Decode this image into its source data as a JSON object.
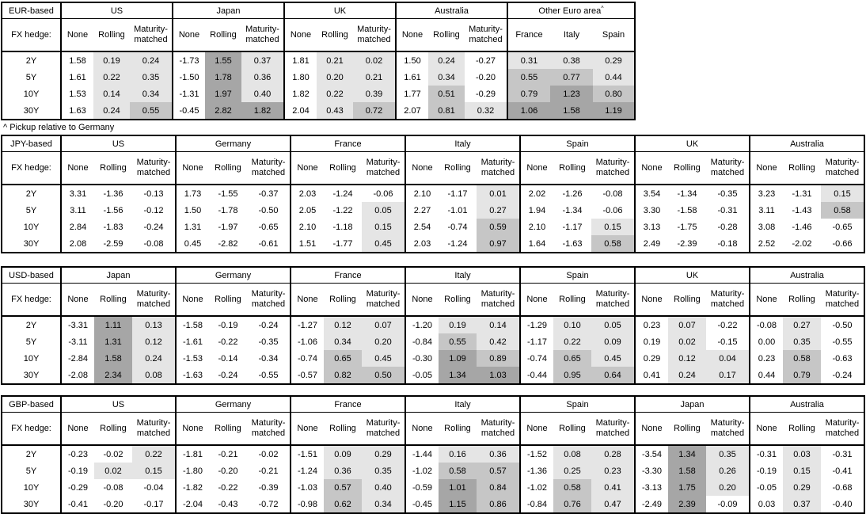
{
  "footnote": "^ Pickup relative to Germany",
  "labels": {
    "fx_hedge": "FX hedge:",
    "tenors": [
      "2Y",
      "5Y",
      "10Y",
      "30Y"
    ],
    "hedge_cols": [
      "None",
      "Rolling",
      "Maturity-matched"
    ]
  },
  "heat_colors": {
    "negative": "#ffffff",
    "low": "#e5e5e5",
    "mid": "#c6c6c6",
    "high": "#a6a6a6"
  },
  "tables": [
    {
      "id": "eur-based",
      "base_label": "EUR-based",
      "groups": [
        {
          "name": "US",
          "cols": [
            "None",
            "Rolling",
            "Maturity-matched"
          ],
          "shade_all": false,
          "rows": [
            [
              "1.58",
              "0.19",
              "0.24"
            ],
            [
              "1.61",
              "0.22",
              "0.35"
            ],
            [
              "1.53",
              "0.14",
              "0.34"
            ],
            [
              "1.63",
              "0.24",
              "0.55"
            ]
          ]
        },
        {
          "name": "Japan",
          "cols": [
            "None",
            "Rolling",
            "Maturity-matched"
          ],
          "shade_all": false,
          "rows": [
            [
              "-1.73",
              "1.55",
              "0.37"
            ],
            [
              "-1.50",
              "1.78",
              "0.36"
            ],
            [
              "-1.31",
              "1.97",
              "0.40"
            ],
            [
              "-0.45",
              "2.82",
              "1.82"
            ]
          ]
        },
        {
          "name": "UK",
          "cols": [
            "None",
            "Rolling",
            "Maturity-matched"
          ],
          "shade_all": false,
          "rows": [
            [
              "1.81",
              "0.21",
              "0.02"
            ],
            [
              "1.80",
              "0.20",
              "0.21"
            ],
            [
              "1.82",
              "0.22",
              "0.39"
            ],
            [
              "2.04",
              "0.43",
              "0.72"
            ]
          ]
        },
        {
          "name": "Australia",
          "cols": [
            "None",
            "Rolling",
            "Maturity-matched"
          ],
          "shade_all": false,
          "rows": [
            [
              "1.50",
              "0.24",
              "-0.27"
            ],
            [
              "1.61",
              "0.34",
              "-0.20"
            ],
            [
              "1.77",
              "0.51",
              "-0.29"
            ],
            [
              "2.07",
              "0.81",
              "0.32"
            ]
          ]
        },
        {
          "name": "Other Euro area",
          "sup": "^",
          "cols": [
            "France",
            "Italy",
            "Spain"
          ],
          "shade_all": true,
          "rows": [
            [
              "0.31",
              "0.38",
              "0.29"
            ],
            [
              "0.55",
              "0.77",
              "0.44"
            ],
            [
              "0.79",
              "1.23",
              "0.80"
            ],
            [
              "1.06",
              "1.58",
              "1.19"
            ]
          ]
        }
      ]
    },
    {
      "id": "jpy-based",
      "base_label": "JPY-based",
      "groups": [
        {
          "name": "US",
          "cols": [
            "None",
            "Rolling",
            "Maturity-matched"
          ],
          "shade_all": false,
          "rows": [
            [
              "3.31",
              "-1.36",
              "-0.13"
            ],
            [
              "3.11",
              "-1.56",
              "-0.12"
            ],
            [
              "2.84",
              "-1.83",
              "-0.24"
            ],
            [
              "2.08",
              "-2.59",
              "-0.08"
            ]
          ]
        },
        {
          "name": "Germany",
          "cols": [
            "None",
            "Rolling",
            "Maturity-matched"
          ],
          "shade_all": false,
          "rows": [
            [
              "1.73",
              "-1.55",
              "-0.37"
            ],
            [
              "1.50",
              "-1.78",
              "-0.50"
            ],
            [
              "1.31",
              "-1.97",
              "-0.65"
            ],
            [
              "0.45",
              "-2.82",
              "-0.61"
            ]
          ]
        },
        {
          "name": "France",
          "cols": [
            "None",
            "Rolling",
            "Maturity-matched"
          ],
          "shade_all": false,
          "rows": [
            [
              "2.03",
              "-1.24",
              "-0.06"
            ],
            [
              "2.05",
              "-1.22",
              "0.05"
            ],
            [
              "2.10",
              "-1.18",
              "0.15"
            ],
            [
              "1.51",
              "-1.77",
              "0.45"
            ]
          ]
        },
        {
          "name": "Italy",
          "cols": [
            "None",
            "Rolling",
            "Maturity-matched"
          ],
          "shade_all": false,
          "rows": [
            [
              "2.10",
              "-1.17",
              "0.01"
            ],
            [
              "2.27",
              "-1.01",
              "0.27"
            ],
            [
              "2.54",
              "-0.74",
              "0.59"
            ],
            [
              "2.03",
              "-1.24",
              "0.97"
            ]
          ]
        },
        {
          "name": "Spain",
          "cols": [
            "None",
            "Rolling",
            "Maturity-matched"
          ],
          "shade_all": false,
          "rows": [
            [
              "2.02",
              "-1.26",
              "-0.08"
            ],
            [
              "1.94",
              "-1.34",
              "-0.06"
            ],
            [
              "2.10",
              "-1.17",
              "0.15"
            ],
            [
              "1.64",
              "-1.63",
              "0.58"
            ]
          ]
        },
        {
          "name": "UK",
          "cols": [
            "None",
            "Rolling",
            "Maturity-matched"
          ],
          "shade_all": false,
          "rows": [
            [
              "3.54",
              "-1.34",
              "-0.35"
            ],
            [
              "3.30",
              "-1.58",
              "-0.31"
            ],
            [
              "3.13",
              "-1.75",
              "-0.28"
            ],
            [
              "2.49",
              "-2.39",
              "-0.18"
            ]
          ]
        },
        {
          "name": "Australia",
          "cols": [
            "None",
            "Rolling",
            "Maturity-matched"
          ],
          "shade_all": false,
          "rows": [
            [
              "3.23",
              "-1.31",
              "0.15"
            ],
            [
              "3.11",
              "-1.43",
              "0.58"
            ],
            [
              "3.08",
              "-1.46",
              "-0.65"
            ],
            [
              "2.52",
              "-2.02",
              "-0.66"
            ]
          ]
        }
      ]
    },
    {
      "id": "usd-based",
      "base_label": "USD-based",
      "groups": [
        {
          "name": "Japan",
          "cols": [
            "None",
            "Rolling",
            "Maturity-matched"
          ],
          "shade_all": false,
          "rows": [
            [
              "-3.31",
              "1.11",
              "0.13"
            ],
            [
              "-3.11",
              "1.31",
              "0.12"
            ],
            [
              "-2.84",
              "1.58",
              "0.24"
            ],
            [
              "-2.08",
              "2.34",
              "0.08"
            ]
          ]
        },
        {
          "name": "Germany",
          "cols": [
            "None",
            "Rolling",
            "Maturity-matched"
          ],
          "shade_all": false,
          "rows": [
            [
              "-1.58",
              "-0.19",
              "-0.24"
            ],
            [
              "-1.61",
              "-0.22",
              "-0.35"
            ],
            [
              "-1.53",
              "-0.14",
              "-0.34"
            ],
            [
              "-1.63",
              "-0.24",
              "-0.55"
            ]
          ]
        },
        {
          "name": "France",
          "cols": [
            "None",
            "Rolling",
            "Maturity-matched"
          ],
          "shade_all": false,
          "rows": [
            [
              "-1.27",
              "0.12",
              "0.07"
            ],
            [
              "-1.06",
              "0.34",
              "0.20"
            ],
            [
              "-0.74",
              "0.65",
              "0.45"
            ],
            [
              "-0.57",
              "0.82",
              "0.50"
            ]
          ]
        },
        {
          "name": "Italy",
          "cols": [
            "None",
            "Rolling",
            "Maturity-matched"
          ],
          "shade_all": false,
          "rows": [
            [
              "-1.20",
              "0.19",
              "0.14"
            ],
            [
              "-0.84",
              "0.55",
              "0.42"
            ],
            [
              "-0.30",
              "1.09",
              "0.89"
            ],
            [
              "-0.05",
              "1.34",
              "1.03"
            ]
          ]
        },
        {
          "name": "Spain",
          "cols": [
            "None",
            "Rolling",
            "Maturity-matched"
          ],
          "shade_all": false,
          "rows": [
            [
              "-1.29",
              "0.10",
              "0.05"
            ],
            [
              "-1.17",
              "0.22",
              "0.09"
            ],
            [
              "-0.74",
              "0.65",
              "0.45"
            ],
            [
              "-0.44",
              "0.95",
              "0.64"
            ]
          ]
        },
        {
          "name": "UK",
          "cols": [
            "None",
            "Rolling",
            "Maturity-matched"
          ],
          "shade_all": false,
          "rows": [
            [
              "0.23",
              "0.07",
              "-0.22"
            ],
            [
              "0.19",
              "0.02",
              "-0.15"
            ],
            [
              "0.29",
              "0.12",
              "0.04"
            ],
            [
              "0.41",
              "0.24",
              "0.17"
            ]
          ]
        },
        {
          "name": "Australia",
          "cols": [
            "None",
            "Rolling",
            "Maturity-matched"
          ],
          "shade_all": false,
          "rows": [
            [
              "-0.08",
              "0.27",
              "-0.50"
            ],
            [
              "0.00",
              "0.35",
              "-0.55"
            ],
            [
              "0.23",
              "0.58",
              "-0.63"
            ],
            [
              "0.44",
              "0.79",
              "-0.24"
            ]
          ]
        }
      ]
    },
    {
      "id": "gbp-based",
      "base_label": "GBP-based",
      "groups": [
        {
          "name": "US",
          "cols": [
            "None",
            "Rolling",
            "Maturity-matched"
          ],
          "shade_all": false,
          "rows": [
            [
              "-0.23",
              "-0.02",
              "0.22"
            ],
            [
              "-0.19",
              "0.02",
              "0.15"
            ],
            [
              "-0.29",
              "-0.08",
              "-0.04"
            ],
            [
              "-0.41",
              "-0.20",
              "-0.17"
            ]
          ]
        },
        {
          "name": "Germany",
          "cols": [
            "None",
            "Rolling",
            "Maturity-matched"
          ],
          "shade_all": false,
          "rows": [
            [
              "-1.81",
              "-0.21",
              "-0.02"
            ],
            [
              "-1.80",
              "-0.20",
              "-0.21"
            ],
            [
              "-1.82",
              "-0.22",
              "-0.39"
            ],
            [
              "-2.04",
              "-0.43",
              "-0.72"
            ]
          ]
        },
        {
          "name": "France",
          "cols": [
            "None",
            "Rolling",
            "Maturity-matched"
          ],
          "shade_all": false,
          "rows": [
            [
              "-1.51",
              "0.09",
              "0.29"
            ],
            [
              "-1.24",
              "0.36",
              "0.35"
            ],
            [
              "-1.03",
              "0.57",
              "0.40"
            ],
            [
              "-0.98",
              "0.62",
              "0.34"
            ]
          ]
        },
        {
          "name": "Italy",
          "cols": [
            "None",
            "Rolling",
            "Maturity-matched"
          ],
          "shade_all": false,
          "rows": [
            [
              "-1.44",
              "0.16",
              "0.36"
            ],
            [
              "-1.02",
              "0.58",
              "0.57"
            ],
            [
              "-0.59",
              "1.01",
              "0.84"
            ],
            [
              "-0.45",
              "1.15",
              "0.86"
            ]
          ]
        },
        {
          "name": "Spain",
          "cols": [
            "None",
            "Rolling",
            "Maturity-matched"
          ],
          "shade_all": false,
          "rows": [
            [
              "-1.52",
              "0.08",
              "0.28"
            ],
            [
              "-1.36",
              "0.25",
              "0.23"
            ],
            [
              "-1.02",
              "0.58",
              "0.41"
            ],
            [
              "-0.84",
              "0.76",
              "0.47"
            ]
          ]
        },
        {
          "name": "Japan",
          "cols": [
            "None",
            "Rolling",
            "Maturity-matched"
          ],
          "shade_all": false,
          "rows": [
            [
              "-3.54",
              "1.34",
              "0.35"
            ],
            [
              "-3.30",
              "1.58",
              "0.26"
            ],
            [
              "-3.13",
              "1.75",
              "0.20"
            ],
            [
              "-2.49",
              "2.39",
              "-0.09"
            ]
          ]
        },
        {
          "name": "Australia",
          "cols": [
            "None",
            "Rolling",
            "Maturity-matched"
          ],
          "shade_all": false,
          "rows": [
            [
              "-0.31",
              "0.03",
              "-0.31"
            ],
            [
              "-0.19",
              "0.15",
              "-0.41"
            ],
            [
              "-0.05",
              "0.29",
              "-0.68"
            ],
            [
              "0.03",
              "0.37",
              "-0.40"
            ]
          ]
        }
      ]
    }
  ]
}
